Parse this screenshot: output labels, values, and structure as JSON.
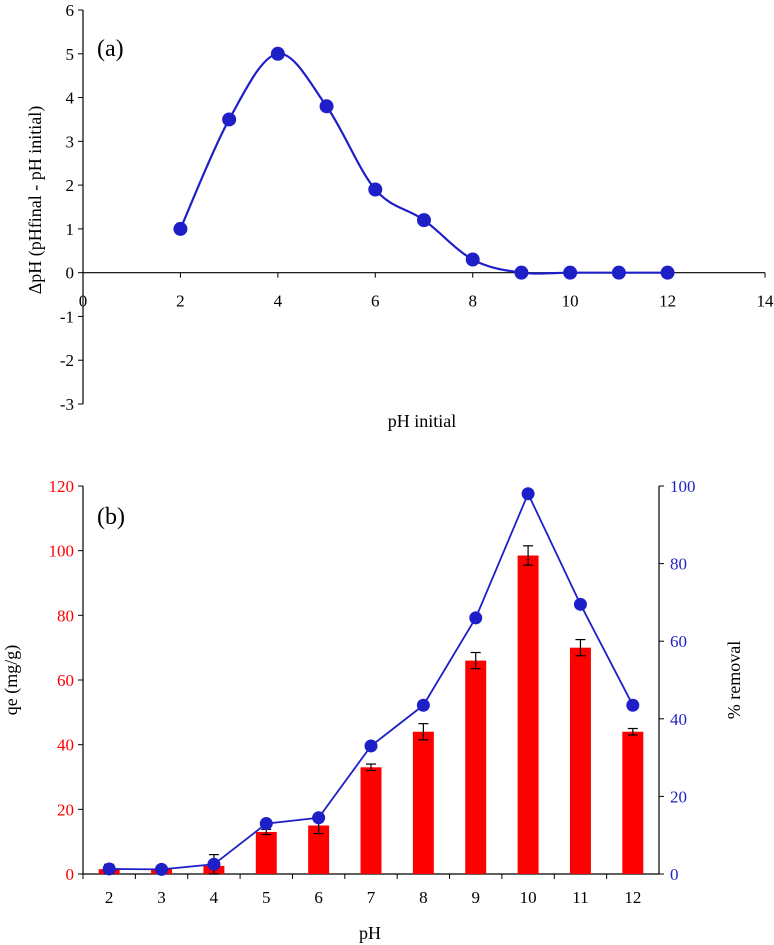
{
  "chart_data": [
    {
      "type": "line",
      "panel_label": "(a)",
      "xlabel": "pH initial",
      "ylabel": "ΔpH (pHfinal - pH initial)",
      "xlim": [
        0,
        14
      ],
      "ylim": [
        -3,
        6
      ],
      "xticks": [
        0,
        2,
        4,
        6,
        8,
        10,
        12,
        14
      ],
      "yticks": [
        -3,
        -2,
        -1,
        0,
        1,
        2,
        3,
        4,
        5,
        6
      ],
      "grid": false,
      "smooth": true,
      "colors": {
        "series": "#1f1fc8"
      },
      "series": [
        {
          "x": [
            2,
            3,
            4,
            5,
            6,
            7,
            8,
            9,
            10,
            11,
            12
          ],
          "y": [
            1.0,
            3.5,
            5.0,
            3.8,
            1.9,
            1.2,
            0.3,
            0.0,
            0.0,
            0.0,
            0.0
          ]
        }
      ]
    },
    {
      "type": "bar",
      "panel_label": "(b)",
      "xlabel": "pH",
      "ylabel": "qe (mg/g)",
      "y2label": "% removal",
      "categories": [
        "2",
        "3",
        "4",
        "5",
        "6",
        "7",
        "8",
        "9",
        "10",
        "11",
        "12"
      ],
      "ylim": [
        0,
        120
      ],
      "y2lim": [
        0,
        100
      ],
      "yticks": [
        0,
        20,
        40,
        60,
        80,
        100,
        120
      ],
      "y2ticks": [
        0,
        20,
        40,
        60,
        80,
        100
      ],
      "grid": false,
      "colors": {
        "bars": "#ff0000",
        "line": "#1f1fc8",
        "left_axis": "#ff0000",
        "right_axis": "#1f1fc8"
      },
      "series": [
        {
          "axis": "left",
          "type": "bar",
          "values": [
            1.5,
            1.5,
            2.5,
            13,
            15,
            33,
            44,
            66,
            98.5,
            70,
            44
          ],
          "errors": [
            1.5,
            0.5,
            3.5,
            0.8,
            2.5,
            1.0,
            2.5,
            2.5,
            3.0,
            2.5,
            1.0
          ]
        },
        {
          "axis": "right",
          "type": "line",
          "values": [
            1.3,
            1.2,
            2.5,
            13,
            14.5,
            33,
            43.5,
            66,
            98,
            69.5,
            43.5
          ]
        }
      ]
    }
  ]
}
